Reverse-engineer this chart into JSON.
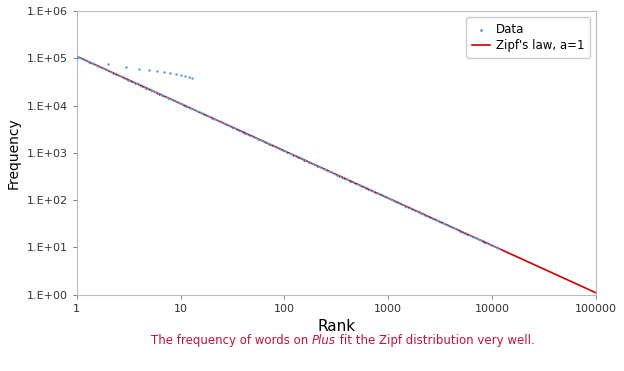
{
  "xlabel": "Rank",
  "ylabel": "Frequency",
  "xlim": [
    1,
    100000
  ],
  "ylim": [
    1,
    1000000
  ],
  "data_color": "#5b9bd5",
  "line_color": "#cc0000",
  "legend_data_label": "Data",
  "legend_line_label": "Zipf's law, a=1",
  "zipf_C": 110000,
  "xticks": [
    1,
    10,
    100,
    1000,
    10000,
    100000
  ],
  "xtick_labels": [
    "1",
    "10",
    "100",
    "1000",
    "10000",
    "100000"
  ],
  "ytick_exponents": [
    0,
    1,
    2,
    3,
    4,
    5,
    6
  ],
  "ytick_labels": [
    "1.E+00",
    "1.E+01",
    "1.E+02",
    "1.E+03",
    "1.E+04",
    "1.E+05",
    "1.E+06"
  ],
  "spine_color": "#bbbbbb",
  "caption_prefix": "The frequency of words on ",
  "caption_italic": "Plus",
  "caption_suffix": " fit the Zipf distribution very well.",
  "caption_color": "#c0143c",
  "caption_fontsize": 8.5,
  "figsize": [
    6.24,
    3.71
  ],
  "dpi": 100
}
